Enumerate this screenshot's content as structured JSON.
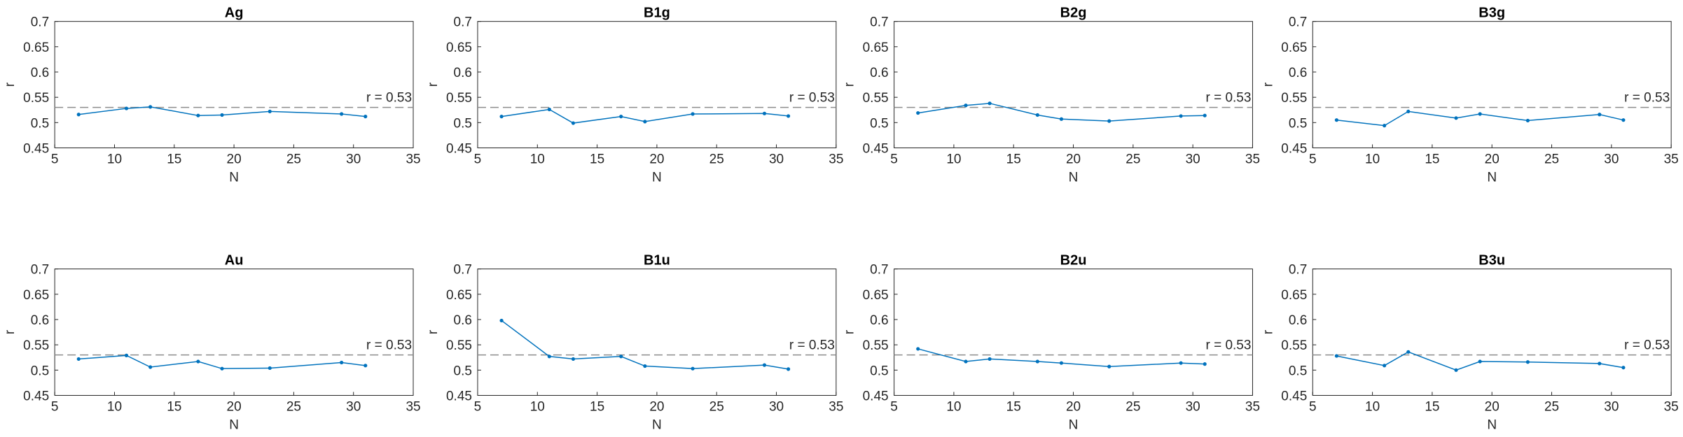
{
  "chart_data": [
    {
      "type": "line",
      "title": "Ag",
      "xlabel": "N",
      "ylabel": "r",
      "x": [
        7,
        11,
        13,
        17,
        19,
        23,
        29,
        31
      ],
      "values": [
        0.516,
        0.528,
        0.531,
        0.514,
        0.515,
        0.522,
        0.517,
        0.512
      ],
      "color": "#0072bd",
      "xlim": [
        5,
        35
      ],
      "xticks": [
        5,
        10,
        15,
        20,
        25,
        30,
        35
      ],
      "ylim": [
        0.45,
        0.7
      ],
      "yticks": [
        0.45,
        0.5,
        0.55,
        0.6,
        0.65,
        0.7
      ],
      "hline": 0.53,
      "annotation": "r = 0.53"
    },
    {
      "type": "line",
      "title": "B1g",
      "xlabel": "N",
      "ylabel": "r",
      "x": [
        7,
        11,
        13,
        17,
        19,
        23,
        29,
        31
      ],
      "values": [
        0.512,
        0.526,
        0.499,
        0.512,
        0.502,
        0.517,
        0.518,
        0.513
      ],
      "color": "#0072bd",
      "xlim": [
        5,
        35
      ],
      "xticks": [
        5,
        10,
        15,
        20,
        25,
        30,
        35
      ],
      "ylim": [
        0.45,
        0.7
      ],
      "yticks": [
        0.45,
        0.5,
        0.55,
        0.6,
        0.65,
        0.7
      ],
      "hline": 0.53,
      "annotation": "r = 0.53"
    },
    {
      "type": "line",
      "title": "B2g",
      "xlabel": "N",
      "ylabel": "r",
      "x": [
        7,
        11,
        13,
        17,
        19,
        23,
        29,
        31
      ],
      "values": [
        0.519,
        0.534,
        0.538,
        0.515,
        0.507,
        0.503,
        0.513,
        0.514
      ],
      "color": "#0072bd",
      "xlim": [
        5,
        35
      ],
      "xticks": [
        5,
        10,
        15,
        20,
        25,
        30,
        35
      ],
      "ylim": [
        0.45,
        0.7
      ],
      "yticks": [
        0.45,
        0.5,
        0.55,
        0.6,
        0.65,
        0.7
      ],
      "hline": 0.53,
      "annotation": "r = 0.53"
    },
    {
      "type": "line",
      "title": "B3g",
      "xlabel": "N",
      "ylabel": "r",
      "x": [
        7,
        11,
        13,
        17,
        19,
        23,
        29,
        31
      ],
      "values": [
        0.505,
        0.494,
        0.522,
        0.509,
        0.517,
        0.504,
        0.516,
        0.505
      ],
      "color": "#0072bd",
      "xlim": [
        5,
        35
      ],
      "xticks": [
        5,
        10,
        15,
        20,
        25,
        30,
        35
      ],
      "ylim": [
        0.45,
        0.7
      ],
      "yticks": [
        0.45,
        0.5,
        0.55,
        0.6,
        0.65,
        0.7
      ],
      "hline": 0.53,
      "annotation": "r = 0.53"
    },
    {
      "type": "line",
      "title": "Au",
      "xlabel": "N",
      "ylabel": "r",
      "x": [
        7,
        11,
        13,
        17,
        19,
        23,
        29,
        31
      ],
      "values": [
        0.522,
        0.529,
        0.506,
        0.517,
        0.503,
        0.504,
        0.515,
        0.509
      ],
      "color": "#0072bd",
      "xlim": [
        5,
        35
      ],
      "xticks": [
        5,
        10,
        15,
        20,
        25,
        30,
        35
      ],
      "ylim": [
        0.45,
        0.7
      ],
      "yticks": [
        0.45,
        0.5,
        0.55,
        0.6,
        0.65,
        0.7
      ],
      "hline": 0.53,
      "annotation": "r = 0.53"
    },
    {
      "type": "line",
      "title": "B1u",
      "xlabel": "N",
      "ylabel": "r",
      "x": [
        7,
        11,
        13,
        17,
        19,
        23,
        29,
        31
      ],
      "values": [
        0.598,
        0.527,
        0.522,
        0.527,
        0.508,
        0.503,
        0.51,
        0.502
      ],
      "color": "#0072bd",
      "xlim": [
        5,
        35
      ],
      "xticks": [
        5,
        10,
        15,
        20,
        25,
        30,
        35
      ],
      "ylim": [
        0.45,
        0.7
      ],
      "yticks": [
        0.45,
        0.5,
        0.55,
        0.6,
        0.65,
        0.7
      ],
      "hline": 0.53,
      "annotation": "r = 0.53"
    },
    {
      "type": "line",
      "title": "B2u",
      "xlabel": "N",
      "ylabel": "r",
      "x": [
        7,
        11,
        13,
        17,
        19,
        23,
        29,
        31
      ],
      "values": [
        0.542,
        0.517,
        0.522,
        0.517,
        0.514,
        0.507,
        0.514,
        0.512
      ],
      "color": "#0072bd",
      "xlim": [
        5,
        35
      ],
      "xticks": [
        5,
        10,
        15,
        20,
        25,
        30,
        35
      ],
      "ylim": [
        0.45,
        0.7
      ],
      "yticks": [
        0.45,
        0.5,
        0.55,
        0.6,
        0.65,
        0.7
      ],
      "hline": 0.53,
      "annotation": "r = 0.53"
    },
    {
      "type": "line",
      "title": "B3u",
      "xlabel": "N",
      "ylabel": "r",
      "x": [
        7,
        11,
        13,
        17,
        19,
        23,
        29,
        31
      ],
      "values": [
        0.528,
        0.509,
        0.536,
        0.5,
        0.517,
        0.516,
        0.513,
        0.505
      ],
      "color": "#0072bd",
      "xlim": [
        5,
        35
      ],
      "xticks": [
        5,
        10,
        15,
        20,
        25,
        30,
        35
      ],
      "ylim": [
        0.45,
        0.7
      ],
      "yticks": [
        0.45,
        0.5,
        0.55,
        0.6,
        0.65,
        0.7
      ],
      "hline": 0.53,
      "annotation": "r = 0.53"
    }
  ]
}
